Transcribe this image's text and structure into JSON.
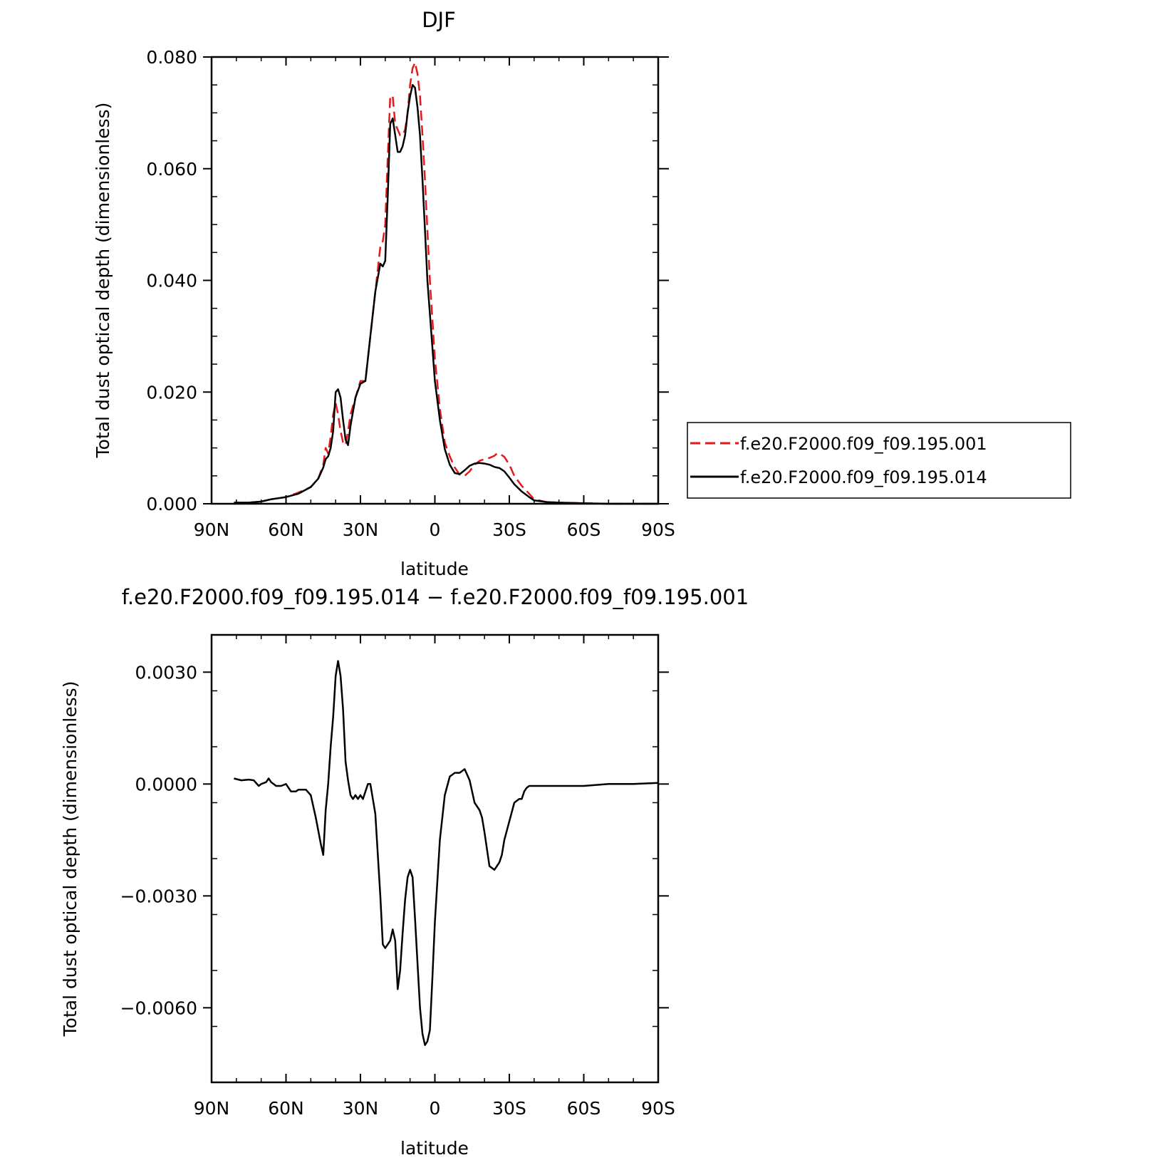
{
  "chart_data": [
    {
      "type": "line",
      "title": "DJF",
      "xlabel": "latitude",
      "ylabel": "Total dust optical depth (dimensionless)",
      "xlim": [
        90,
        -90
      ],
      "ylim": [
        0,
        0.08
      ],
      "x_ticks": [
        90,
        60,
        30,
        0,
        -30,
        -60,
        -90
      ],
      "x_tick_labels": [
        "90N",
        "60N",
        "30N",
        "0",
        "30S",
        "60S",
        "90S"
      ],
      "y_ticks": [
        0,
        0.02,
        0.04,
        0.06,
        0.08
      ],
      "y_tick_labels": [
        "0.000",
        "0.020",
        "0.040",
        "0.060",
        "0.080"
      ],
      "legend_position": "right",
      "grid": false,
      "series": [
        {
          "name": "f.e20.F2000.f09_f09.195.001",
          "color": "#e31a1c",
          "dash": "dashed",
          "x": [
            81,
            75,
            70,
            66,
            60,
            55,
            50,
            47,
            45,
            44,
            43,
            42,
            41,
            40,
            39,
            38,
            37,
            36,
            35,
            34,
            32,
            30,
            28,
            26,
            24,
            22,
            21,
            20,
            19,
            18,
            17,
            16,
            15,
            14,
            13,
            12,
            11,
            10,
            9,
            8,
            7,
            6,
            5,
            4,
            3,
            2,
            0,
            -2,
            -4,
            -6,
            -8,
            -10,
            -12,
            -14,
            -16,
            -18,
            -20,
            -22,
            -24,
            -25,
            -26,
            -28,
            -30,
            -32,
            -35,
            -38,
            -40,
            -45,
            -50,
            -60,
            -70,
            -80,
            -90
          ],
          "y": [
            0.0,
            0.0002,
            0.0004,
            0.0008,
            0.0012,
            0.002,
            0.003,
            0.0045,
            0.007,
            0.01,
            0.009,
            0.012,
            0.016,
            0.018,
            0.016,
            0.013,
            0.011,
            0.0105,
            0.013,
            0.016,
            0.019,
            0.022,
            0.022,
            0.03,
            0.038,
            0.046,
            0.047,
            0.05,
            0.062,
            0.073,
            0.073,
            0.068,
            0.067,
            0.066,
            0.066,
            0.067,
            0.07,
            0.075,
            0.078,
            0.079,
            0.077,
            0.073,
            0.066,
            0.058,
            0.049,
            0.04,
            0.026,
            0.017,
            0.011,
            0.0085,
            0.0065,
            0.0052,
            0.005,
            0.0058,
            0.007,
            0.0077,
            0.008,
            0.0082,
            0.0086,
            0.009,
            0.009,
            0.0084,
            0.007,
            0.005,
            0.0032,
            0.0018,
            0.0008,
            0.0003,
            0.0002,
            0.0001,
            0.0,
            0.0,
            0.0
          ]
        },
        {
          "name": "f.e20.F2000.f09_f09.195.014",
          "color": "#000000",
          "dash": "solid",
          "x": [
            81,
            75,
            70,
            66,
            60,
            55,
            50,
            47,
            45,
            44,
            43,
            42,
            41,
            40,
            39,
            38,
            37,
            36,
            35,
            34,
            32,
            30,
            28,
            26,
            24,
            22,
            21,
            20,
            19,
            18,
            17,
            16,
            15,
            14,
            13,
            12,
            11,
            10,
            9,
            8,
            7,
            6,
            5,
            4,
            3,
            2,
            0,
            -2,
            -4,
            -6,
            -8,
            -10,
            -12,
            -14,
            -16,
            -18,
            -20,
            -22,
            -24,
            -25,
            -26,
            -28,
            -30,
            -32,
            -35,
            -38,
            -40,
            -45,
            -50,
            -60,
            -70,
            -80,
            -90
          ],
          "y": [
            0.0002,
            0.0002,
            0.0004,
            0.0008,
            0.0012,
            0.0018,
            0.003,
            0.0045,
            0.0065,
            0.008,
            0.0085,
            0.01,
            0.013,
            0.02,
            0.0205,
            0.019,
            0.015,
            0.0115,
            0.0105,
            0.014,
            0.019,
            0.0215,
            0.022,
            0.03,
            0.038,
            0.043,
            0.0425,
            0.0435,
            0.055,
            0.068,
            0.069,
            0.066,
            0.063,
            0.063,
            0.064,
            0.066,
            0.07,
            0.073,
            0.075,
            0.0745,
            0.071,
            0.066,
            0.058,
            0.049,
            0.04,
            0.034,
            0.022,
            0.015,
            0.0098,
            0.007,
            0.0055,
            0.0053,
            0.006,
            0.0068,
            0.0072,
            0.0073,
            0.0072,
            0.007,
            0.0066,
            0.0065,
            0.0064,
            0.0058,
            0.0047,
            0.0035,
            0.0022,
            0.0012,
            0.0006,
            0.0003,
            0.0002,
            0.0001,
            0.0,
            0.0,
            0.0
          ]
        }
      ]
    },
    {
      "type": "line",
      "title": "f.e20.F2000.f09_f09.195.014 − f.e20.F2000.f09_f09.195.001",
      "xlabel": "latitude",
      "ylabel": "Total dust optical depth (dimensionless)",
      "xlim": [
        90,
        -90
      ],
      "ylim": [
        -0.008,
        0.004
      ],
      "x_ticks": [
        90,
        60,
        30,
        0,
        -30,
        -60,
        -90
      ],
      "x_tick_labels": [
        "90N",
        "60N",
        "30N",
        "0",
        "30S",
        "60S",
        "90S"
      ],
      "y_ticks": [
        -0.006,
        -0.003,
        0.0,
        0.003
      ],
      "y_tick_labels": [
        "−0.0060",
        "−0.0030",
        "0.0000",
        "0.0030"
      ],
      "grid": false,
      "series": [
        {
          "color": "#000000",
          "dash": "solid",
          "x": [
            81,
            78,
            75,
            73,
            71,
            70,
            68,
            67,
            66,
            65,
            64,
            62,
            60,
            58,
            56,
            55,
            52,
            50,
            48,
            46,
            45,
            44,
            43,
            42,
            41,
            40,
            39,
            38,
            37,
            36,
            35,
            34,
            33,
            32,
            31,
            30,
            29,
            28,
            27,
            26,
            24,
            23,
            22,
            21,
            20,
            19,
            18,
            17,
            16,
            15,
            14,
            13,
            12,
            11,
            10,
            9,
            8,
            7,
            6,
            5,
            4,
            3,
            2,
            1,
            0,
            -2,
            -4,
            -6,
            -8,
            -10,
            -12,
            -14,
            -16,
            -18,
            -19,
            -20,
            -22,
            -24,
            -25,
            -26,
            -27,
            -28,
            -30,
            -32,
            -34,
            -35,
            -36,
            -37,
            -38,
            -40,
            -45,
            -50,
            -60,
            -70,
            -80,
            -90
          ],
          "y": [
            0.00015,
            0.0001,
            0.00012,
            0.0001,
            -5e-05,
            0.0,
            5e-05,
            0.00015,
            5e-05,
            0.0,
            -5e-05,
            -5e-05,
            0.0,
            -0.0002,
            -0.0002,
            -0.00015,
            -0.00015,
            -0.0003,
            -0.0009,
            -0.0016,
            -0.0019,
            -0.0007,
            0.0,
            0.001,
            0.0018,
            0.0029,
            0.0033,
            0.0029,
            0.002,
            0.0006,
            0.0001,
            -0.0003,
            -0.0004,
            -0.0003,
            -0.0004,
            -0.0003,
            -0.0004,
            -0.0002,
            0.0,
            0.0,
            -0.0008,
            -0.0019,
            -0.003,
            -0.0043,
            -0.0044,
            -0.0043,
            -0.0042,
            -0.0039,
            -0.0042,
            -0.0055,
            -0.005,
            -0.004,
            -0.0031,
            -0.0025,
            -0.0023,
            -0.0025,
            -0.0036,
            -0.0048,
            -0.006,
            -0.0067,
            -0.007,
            -0.0069,
            -0.0066,
            -0.0052,
            -0.0037,
            -0.0015,
            -0.0003,
            0.0002,
            0.0003,
            0.0003,
            0.0004,
            0.0001,
            -0.0005,
            -0.0007,
            -0.0009,
            -0.0013,
            -0.0022,
            -0.0023,
            -0.0022,
            -0.0021,
            -0.0019,
            -0.0015,
            -0.001,
            -0.0005,
            -0.0004,
            -0.0004,
            -0.0002,
            -0.0001,
            -5e-05,
            -5e-05,
            -5e-05,
            -5e-05,
            -5e-05,
            0.0,
            0.0,
            3e-05
          ]
        }
      ]
    }
  ]
}
